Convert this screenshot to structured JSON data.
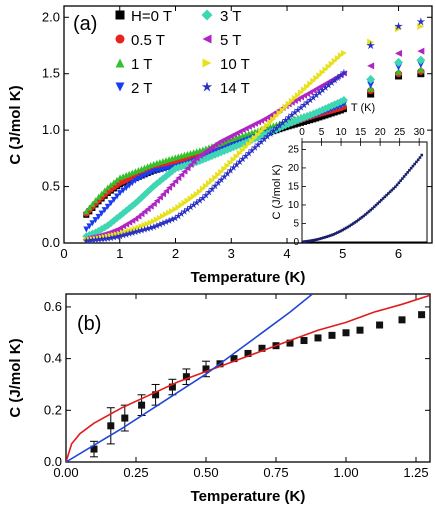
{
  "chart_data": [
    {
      "type": "scatter",
      "panel_label": "(a)",
      "xlabel": "Temperature (K)",
      "ylabel": "C (J/mol K)",
      "xlim": [
        0,
        6.6
      ],
      "ylim": [
        0,
        2.1
      ],
      "xticks": [
        "0",
        "1",
        "2",
        "3",
        "4",
        "5",
        "6"
      ],
      "yticks": [
        "0.0",
        "0.5",
        "1.0",
        "1.5",
        "2.0"
      ],
      "legend_placement": "top-left",
      "series": [
        {
          "name": "H=0 T",
          "marker": "square",
          "color": "#000000",
          "x": [
            0.4,
            0.6,
            0.8,
            1.0,
            1.3,
            1.6,
            2.0,
            2.5,
            3.0,
            3.5,
            4.0,
            4.5,
            5.0,
            5.5,
            6.0,
            6.4
          ],
          "y": [
            0.25,
            0.36,
            0.45,
            0.52,
            0.58,
            0.64,
            0.7,
            0.78,
            0.86,
            0.95,
            1.03,
            1.1,
            1.18,
            1.32,
            1.48,
            1.5
          ]
        },
        {
          "name": "0.5 T",
          "marker": "circle",
          "color": "#e8231c",
          "x": [
            0.4,
            0.6,
            0.8,
            1.0,
            1.3,
            1.6,
            2.0,
            2.5,
            3.0,
            3.5,
            4.0,
            4.5,
            5.0,
            5.5,
            6.0,
            6.4
          ],
          "y": [
            0.26,
            0.37,
            0.46,
            0.53,
            0.6,
            0.66,
            0.72,
            0.8,
            0.88,
            0.97,
            1.05,
            1.13,
            1.2,
            1.35,
            1.5,
            1.52
          ]
        },
        {
          "name": "1 T",
          "marker": "triangle-up",
          "color": "#35c02c",
          "x": [
            0.4,
            0.6,
            0.8,
            1.0,
            1.3,
            1.6,
            2.0,
            2.5,
            3.0,
            3.5,
            4.0,
            4.5,
            5.0,
            5.5,
            6.0,
            6.4
          ],
          "y": [
            0.28,
            0.4,
            0.5,
            0.58,
            0.64,
            0.7,
            0.76,
            0.83,
            0.92,
            1.0,
            1.08,
            1.16,
            1.24,
            1.37,
            1.52,
            1.54
          ]
        },
        {
          "name": "2 T",
          "marker": "triangle-down",
          "color": "#1a3cf0",
          "x": [
            0.4,
            0.6,
            0.8,
            1.0,
            1.3,
            1.6,
            1.9,
            2.2,
            2.6,
            3.0,
            3.5,
            4.0,
            4.5,
            5.0,
            5.5,
            6.0,
            6.4
          ],
          "y": [
            0.12,
            0.22,
            0.33,
            0.44,
            0.56,
            0.63,
            0.66,
            0.7,
            0.78,
            0.86,
            0.95,
            1.04,
            1.13,
            1.22,
            1.4,
            1.56,
            1.58
          ]
        },
        {
          "name": "3 T",
          "marker": "diamond",
          "color": "#3fd6b3",
          "x": [
            0.4,
            0.6,
            0.8,
            1.0,
            1.3,
            1.6,
            2.0,
            2.4,
            2.8,
            3.2,
            3.6,
            4.0,
            4.5,
            5.0,
            5.5,
            6.0,
            6.4
          ],
          "y": [
            0.06,
            0.1,
            0.16,
            0.24,
            0.36,
            0.5,
            0.66,
            0.72,
            0.8,
            0.88,
            0.96,
            1.05,
            1.15,
            1.26,
            1.45,
            1.6,
            1.62
          ]
        },
        {
          "name": "5 T",
          "marker": "triangle-left",
          "color": "#b024c4",
          "x": [
            0.4,
            0.6,
            0.8,
            1.0,
            1.3,
            1.6,
            2.0,
            2.4,
            2.8,
            3.2,
            3.6,
            4.0,
            4.5,
            5.0,
            5.5,
            6.0,
            6.4
          ],
          "y": [
            0.04,
            0.06,
            0.09,
            0.13,
            0.22,
            0.34,
            0.55,
            0.76,
            0.9,
            1.0,
            1.1,
            1.22,
            1.36,
            1.5,
            1.57,
            1.68,
            1.7
          ]
        },
        {
          "name": "10 T",
          "marker": "triangle-right",
          "color": "#e8e01a",
          "x": [
            0.4,
            0.6,
            0.8,
            1.0,
            1.3,
            1.6,
            2.0,
            2.4,
            2.8,
            3.2,
            3.6,
            4.0,
            4.5,
            5.0,
            5.5,
            6.0,
            6.4
          ],
          "y": [
            0.03,
            0.04,
            0.06,
            0.08,
            0.13,
            0.19,
            0.3,
            0.44,
            0.62,
            0.82,
            1.02,
            1.22,
            1.45,
            1.68,
            1.78,
            1.9,
            1.92
          ]
        },
        {
          "name": "14 T",
          "marker": "star",
          "color": "#2a2fc4",
          "x": [
            0.4,
            0.6,
            0.8,
            1.0,
            1.3,
            1.6,
            2.0,
            2.5,
            3.0,
            3.5,
            4.0,
            4.5,
            5.0,
            5.5,
            6.0,
            6.4
          ],
          "y": [
            0.02,
            0.03,
            0.04,
            0.06,
            0.1,
            0.14,
            0.22,
            0.4,
            0.65,
            0.88,
            1.1,
            1.3,
            1.5,
            1.75,
            1.92,
            1.96
          ]
        }
      ],
      "inset": {
        "xlabel": "T (K)",
        "ylabel": "C (J/mol K)",
        "xlim": [
          0,
          32
        ],
        "ylim": [
          0,
          27
        ],
        "xticks": [
          "0",
          "5",
          "10",
          "15",
          "20",
          "25",
          "30"
        ],
        "yticks": [
          "0",
          "5",
          "10",
          "15",
          "20",
          "25"
        ],
        "x": [
          0.5,
          2,
          4,
          6,
          8,
          10,
          12,
          14,
          16,
          18,
          20,
          22,
          24,
          26,
          28,
          30,
          31
        ],
        "y": [
          0.1,
          0.3,
          0.7,
          1.3,
          2.0,
          3.0,
          4.2,
          5.6,
          7.2,
          9.0,
          11.0,
          13.0,
          15.0,
          17.5,
          20.0,
          22.5,
          24.0
        ]
      }
    },
    {
      "type": "scatter",
      "panel_label": "(b)",
      "xlabel": "Temperature (K)",
      "ylabel": "C (J/mol K)",
      "xlim": [
        0,
        1.3
      ],
      "ylim": [
        0,
        0.65
      ],
      "xticks": [
        "0.00",
        "0.25",
        "0.50",
        "0.75",
        "1.00",
        "1.25"
      ],
      "yticks": [
        "0.0",
        "0.2",
        "0.4",
        "0.6"
      ],
      "data": {
        "x": [
          0.1,
          0.16,
          0.21,
          0.27,
          0.32,
          0.38,
          0.43,
          0.5,
          0.55,
          0.6,
          0.65,
          0.7,
          0.75,
          0.8,
          0.85,
          0.9,
          0.95,
          1.0,
          1.05,
          1.12,
          1.2,
          1.27
        ],
        "y": [
          0.05,
          0.14,
          0.17,
          0.22,
          0.26,
          0.29,
          0.33,
          0.36,
          0.38,
          0.4,
          0.42,
          0.44,
          0.45,
          0.46,
          0.47,
          0.48,
          0.49,
          0.5,
          0.51,
          0.53,
          0.55,
          0.57
        ],
        "error": [
          0.03,
          0.07,
          0.05,
          0.04,
          0.04,
          0.03,
          0.03,
          0.03,
          0.02,
          0.02,
          0.02,
          0.02,
          0.02,
          0.02,
          0.02,
          0.02,
          0.02,
          0.02,
          0.02,
          0.02,
          0.02,
          0.02
        ]
      },
      "fit_lines": [
        {
          "color": "#e21b1b",
          "x": [
            0,
            0.02,
            0.05,
            0.1,
            0.2,
            0.3,
            0.4,
            0.5,
            0.6,
            0.7,
            0.8,
            0.9,
            1.0,
            1.1,
            1.2,
            1.3
          ],
          "y": [
            0,
            0.07,
            0.11,
            0.15,
            0.21,
            0.26,
            0.31,
            0.35,
            0.39,
            0.43,
            0.47,
            0.51,
            0.54,
            0.58,
            0.61,
            0.645
          ]
        },
        {
          "color": "#2047d8",
          "x": [
            0,
            0.1,
            0.2,
            0.3,
            0.4,
            0.5,
            0.6,
            0.7,
            0.8,
            0.88
          ],
          "y": [
            0,
            0.065,
            0.13,
            0.2,
            0.27,
            0.34,
            0.42,
            0.5,
            0.58,
            0.65
          ]
        }
      ]
    }
  ]
}
